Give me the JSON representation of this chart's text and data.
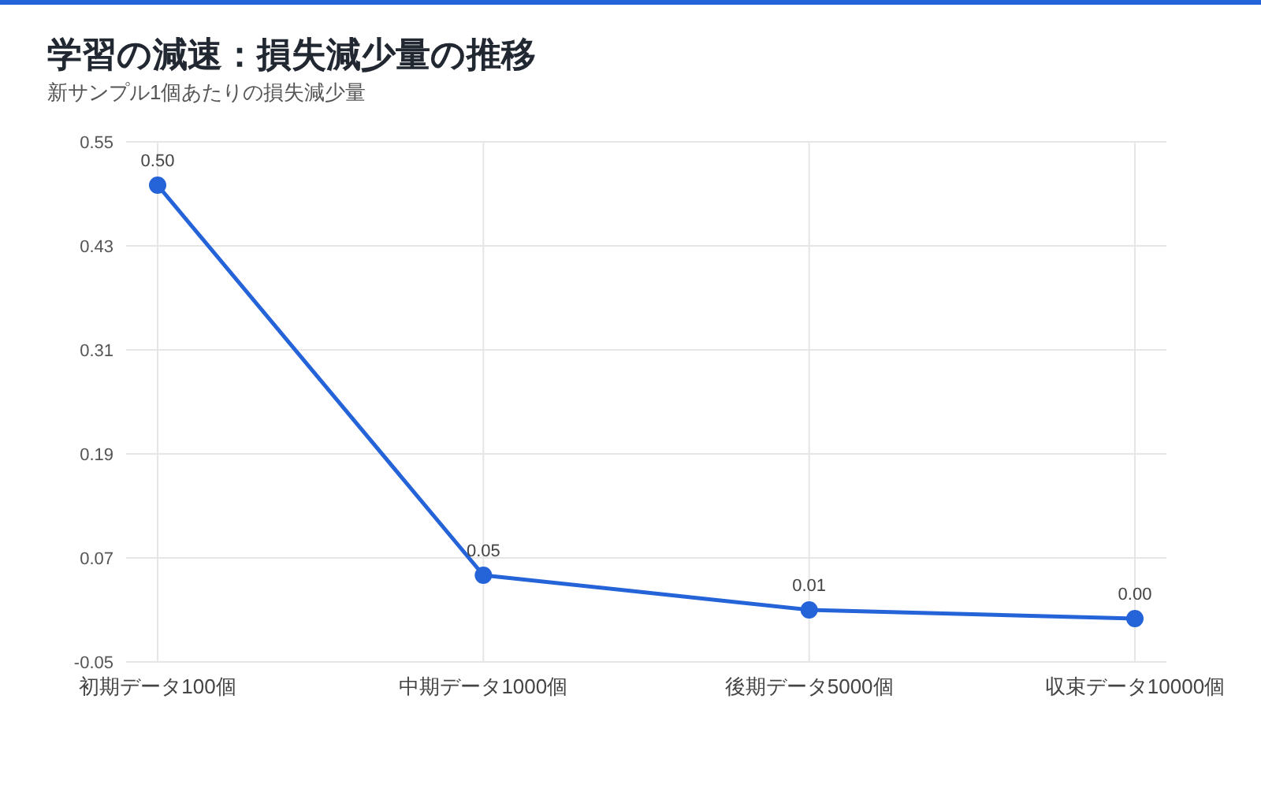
{
  "chart_data": {
    "type": "line",
    "title": "学習の減速：損失減少量の推移",
    "subtitle": "新サンプル1個あたりの損失減少量",
    "categories": [
      "初期データ100個",
      "中期データ1000個",
      "後期データ5000個",
      "収束データ10000個"
    ],
    "series": [
      {
        "color": "#2563d9",
        "values": [
          0.5,
          0.05,
          0.01,
          0.0
        ],
        "value_labels": [
          "0.50",
          "0.05",
          "0.01",
          "0.00"
        ]
      }
    ],
    "ylim": [
      -0.05,
      0.55
    ],
    "yticks": [
      -0.05,
      0.07,
      0.19,
      0.31,
      0.43,
      0.55
    ],
    "grid": true,
    "marker": "circle",
    "line_style": "solid"
  }
}
